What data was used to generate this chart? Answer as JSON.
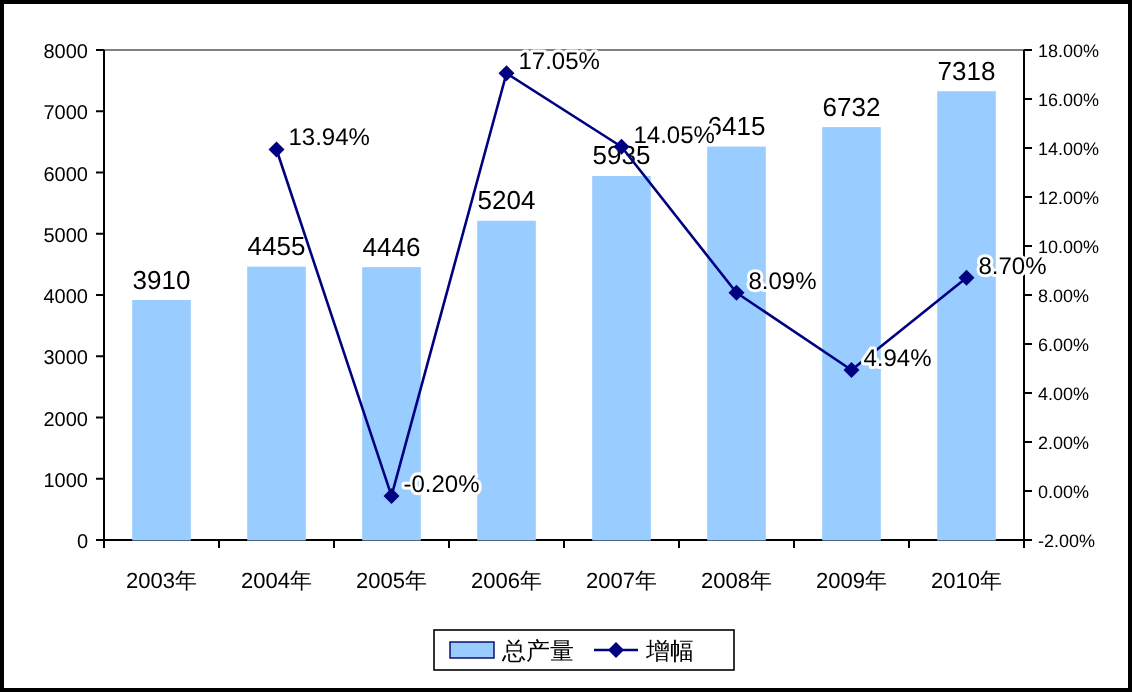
{
  "chart_data": {
    "type": "bar",
    "categories": [
      "2003年",
      "2004年",
      "2005年",
      "2006年",
      "2007年",
      "2008年",
      "2009年",
      "2010年"
    ],
    "series": [
      {
        "name": "总产量",
        "color": "#99ccff",
        "values": [
          3910,
          4455,
          4446,
          5204,
          5935,
          6415,
          6732,
          7318
        ],
        "value_labels": [
          "3910",
          "4455",
          "4446",
          "5204",
          "5935",
          "6415",
          "6732",
          "7318"
        ]
      },
      {
        "name": "增幅",
        "type": "line",
        "axis": "y2",
        "color": "#000080",
        "values": [
          null,
          13.94,
          -0.2,
          17.05,
          14.05,
          8.09,
          4.94,
          8.7
        ],
        "value_labels": [
          null,
          "13.94%",
          "-0.20%",
          "17.05%",
          "14.05%",
          "8.09%",
          "4.94%",
          "8.70%"
        ]
      }
    ],
    "ylim": [
      0,
      8000
    ],
    "yticks": [
      0,
      1000,
      2000,
      3000,
      4000,
      5000,
      6000,
      7000,
      8000
    ],
    "y2lim": [
      -2,
      18
    ],
    "y2ticks": [
      {
        "value": -2,
        "label": "-2.00%"
      },
      {
        "value": 0,
        "label": "0.00%"
      },
      {
        "value": 2,
        "label": "2.00%"
      },
      {
        "value": 4,
        "label": "4.00%"
      },
      {
        "value": 6,
        "label": "6.00%"
      },
      {
        "value": 8,
        "label": "8.00%"
      },
      {
        "value": 10,
        "label": "10.00%"
      },
      {
        "value": 12,
        "label": "12.00%"
      },
      {
        "value": 14,
        "label": "14.00%"
      },
      {
        "value": 16,
        "label": "16.00%"
      },
      {
        "value": 18,
        "label": "18.00%"
      }
    ],
    "marker": "diamond",
    "legend": "bottom"
  }
}
